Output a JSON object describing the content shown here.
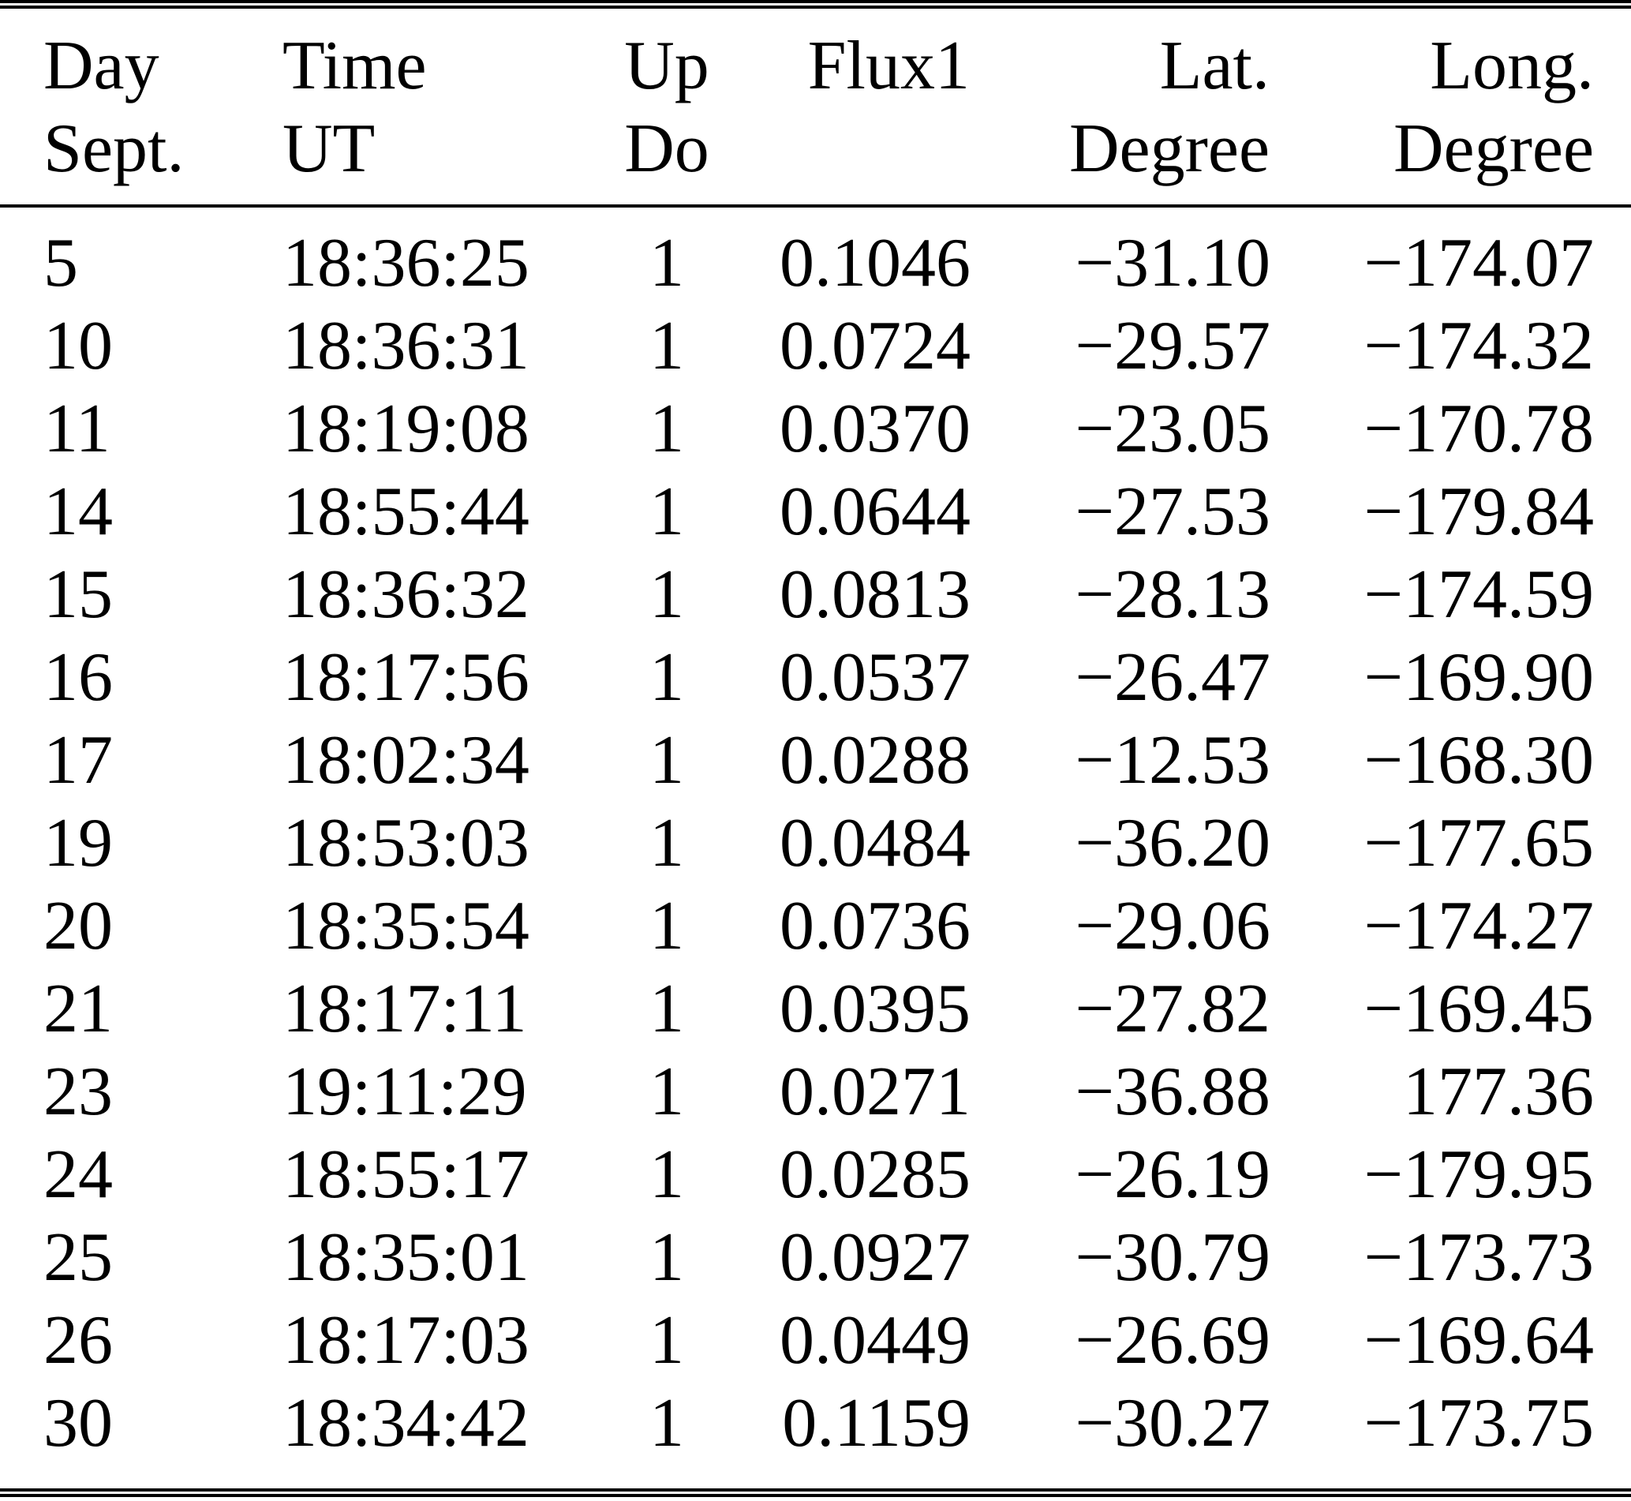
{
  "colors": {
    "text": "#000000",
    "background": "#ffffff",
    "rule": "#000000"
  },
  "table": {
    "column_ids": [
      "day",
      "time",
      "updo",
      "flux1",
      "lat",
      "long"
    ],
    "columns": [
      {
        "line1": "Day",
        "line2": "Sept."
      },
      {
        "line1": "Time",
        "line2": "UT"
      },
      {
        "line1": "Up",
        "line2": "Do"
      },
      {
        "line1": "Flux1",
        "line2": ""
      },
      {
        "line1": "Lat.",
        "line2": "Degree"
      },
      {
        "line1": "Long.",
        "line2": "Degree"
      }
    ],
    "rows": [
      [
        "5",
        "18:36:25",
        "1",
        "0.1046",
        "−31.10",
        "−174.07"
      ],
      [
        "10",
        "18:36:31",
        "1",
        "0.0724",
        "−29.57",
        "−174.32"
      ],
      [
        "11",
        "18:19:08",
        "1",
        "0.0370",
        "−23.05",
        "−170.78"
      ],
      [
        "14",
        "18:55:44",
        "1",
        "0.0644",
        "−27.53",
        "−179.84"
      ],
      [
        "15",
        "18:36:32",
        "1",
        "0.0813",
        "−28.13",
        "−174.59"
      ],
      [
        "16",
        "18:17:56",
        "1",
        "0.0537",
        "−26.47",
        "−169.90"
      ],
      [
        "17",
        "18:02:34",
        "1",
        "0.0288",
        "−12.53",
        "−168.30"
      ],
      [
        "19",
        "18:53:03",
        "1",
        "0.0484",
        "−36.20",
        "−177.65"
      ],
      [
        "20",
        "18:35:54",
        "1",
        "0.0736",
        "−29.06",
        "−174.27"
      ],
      [
        "21",
        "18:17:11",
        "1",
        "0.0395",
        "−27.82",
        "−169.45"
      ],
      [
        "23",
        "19:11:29",
        "1",
        "0.0271",
        "−36.88",
        "177.36"
      ],
      [
        "24",
        "18:55:17",
        "1",
        "0.0285",
        "−26.19",
        "−179.95"
      ],
      [
        "25",
        "18:35:01",
        "1",
        "0.0927",
        "−30.79",
        "−173.73"
      ],
      [
        "26",
        "18:17:03",
        "1",
        "0.0449",
        "−26.69",
        "−169.64"
      ],
      [
        "30",
        "18:34:42",
        "1",
        "0.1159",
        "−30.27",
        "−173.75"
      ]
    ]
  },
  "chart_data": {
    "type": "table",
    "columns": [
      "Day Sept.",
      "Time UT",
      "Up Do",
      "Flux1",
      "Lat. Degree",
      "Long. Degree"
    ],
    "rows": [
      [
        "5",
        "18:36:25",
        "1",
        "0.1046",
        "−31.10",
        "−174.07"
      ],
      [
        "10",
        "18:36:31",
        "1",
        "0.0724",
        "−29.57",
        "−174.32"
      ],
      [
        "11",
        "18:19:08",
        "1",
        "0.0370",
        "−23.05",
        "−170.78"
      ],
      [
        "14",
        "18:55:44",
        "1",
        "0.0644",
        "−27.53",
        "−179.84"
      ],
      [
        "15",
        "18:36:32",
        "1",
        "0.0813",
        "−28.13",
        "−174.59"
      ],
      [
        "16",
        "18:17:56",
        "1",
        "0.0537",
        "−26.47",
        "−169.90"
      ],
      [
        "17",
        "18:02:34",
        "1",
        "0.0288",
        "−12.53",
        "−168.30"
      ],
      [
        "19",
        "18:53:03",
        "1",
        "0.0484",
        "−36.20",
        "−177.65"
      ],
      [
        "20",
        "18:35:54",
        "1",
        "0.0736",
        "−29.06",
        "−174.27"
      ],
      [
        "21",
        "18:17:11",
        "1",
        "0.0395",
        "−27.82",
        "−169.45"
      ],
      [
        "23",
        "19:11:29",
        "1",
        "0.0271",
        "−36.88",
        "177.36"
      ],
      [
        "24",
        "18:55:17",
        "1",
        "0.0285",
        "−26.19",
        "−179.95"
      ],
      [
        "25",
        "18:35:01",
        "1",
        "0.0927",
        "−30.79",
        "−173.73"
      ],
      [
        "26",
        "18:17:03",
        "1",
        "0.0449",
        "−26.69",
        "−169.64"
      ],
      [
        "30",
        "18:34:42",
        "1",
        "0.1159",
        "−30.27",
        "−173.75"
      ]
    ]
  }
}
